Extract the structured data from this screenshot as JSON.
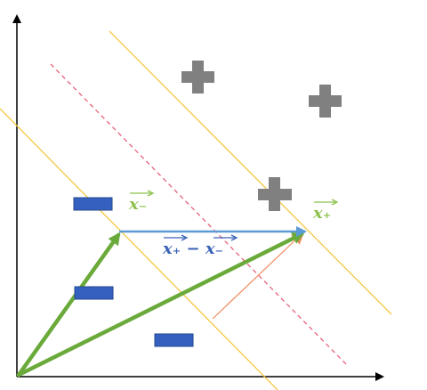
{
  "diagram": {
    "labels": {
      "x_minus": "x₋",
      "x_plus": "x₊",
      "difference": "x₊ − x₋"
    },
    "class_markers": {
      "positive": {
        "symbol": "plus",
        "count": 3
      },
      "negative": {
        "symbol": "minus",
        "count": 3
      }
    },
    "colors": {
      "axis": "#000000",
      "margin_line": "#f5c842",
      "decision_line": "#e8607a",
      "support_vector_arrow": "#6aaa3a",
      "difference_arrow": "#5b9bd5",
      "projection_line": "#f08a5d",
      "positive_marker": "#808080",
      "negative_marker": "#3560c0",
      "label_x_minus": "#8cc04a",
      "label_x_plus": "#8cc04a",
      "label_difference": "#3a62b8"
    }
  }
}
